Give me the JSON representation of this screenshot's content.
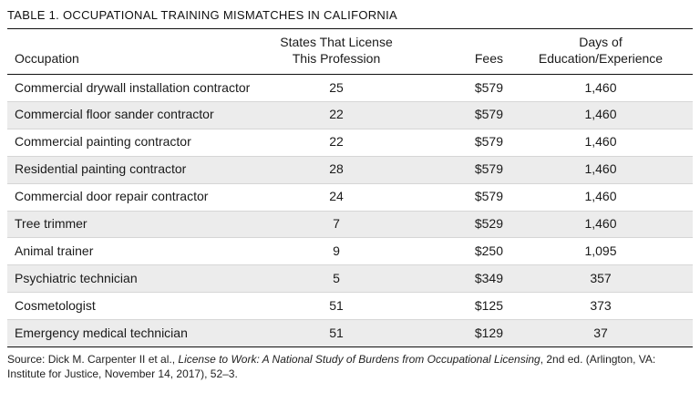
{
  "title": "TABLE 1. OCCUPATIONAL TRAINING MISMATCHES IN CALIFORNIA",
  "table": {
    "columns": [
      [
        "Occupation"
      ],
      [
        "States That License",
        "This Profession"
      ],
      [
        "Fees"
      ],
      [
        "Days of",
        "Education/Experience"
      ]
    ],
    "rows": [
      {
        "occupation": "Commercial drywall installation contractor",
        "states": "25",
        "fees": "$579",
        "days": "1,460"
      },
      {
        "occupation": "Commercial floor sander contractor",
        "states": "22",
        "fees": "$579",
        "days": "1,460"
      },
      {
        "occupation": "Commercial painting contractor",
        "states": "22",
        "fees": "$579",
        "days": "1,460"
      },
      {
        "occupation": "Residential painting contractor",
        "states": "28",
        "fees": "$579",
        "days": "1,460"
      },
      {
        "occupation": "Commercial door repair contractor",
        "states": "24",
        "fees": "$579",
        "days": "1,460"
      },
      {
        "occupation": "Tree trimmer",
        "states": "7",
        "fees": "$529",
        "days": "1,460"
      },
      {
        "occupation": "Animal trainer",
        "states": "9",
        "fees": "$250",
        "days": "1,095"
      },
      {
        "occupation": "Psychiatric technician",
        "states": "5",
        "fees": "$349",
        "days": "357"
      },
      {
        "occupation": "Cosmetologist",
        "states": "51",
        "fees": "$125",
        "days": "373"
      },
      {
        "occupation": "Emergency medical technician",
        "states": "51",
        "fees": "$129",
        "days": "37"
      }
    ]
  },
  "source": {
    "prefix": "Source: Dick M. Carpenter II et al., ",
    "work_title": "License to Work: A National Study of Burdens from Occupational Licensing",
    "suffix": ", 2nd ed. (Arlington, VA: Institute for Justice, November 14, 2017), 52–3."
  }
}
